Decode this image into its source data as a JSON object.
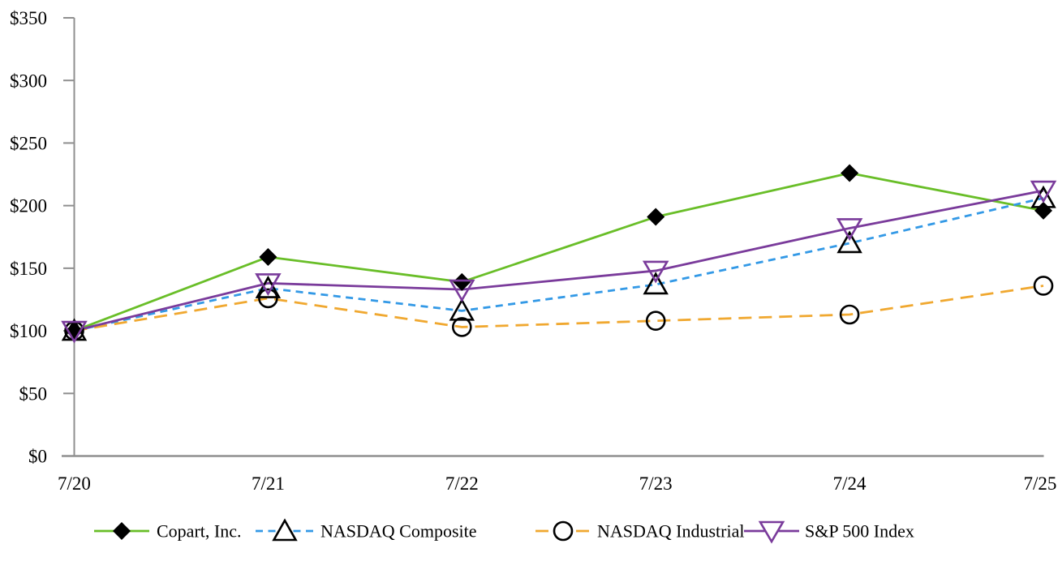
{
  "chart_data": {
    "type": "line",
    "title": "",
    "x_categories": [
      "7/20",
      "7/21",
      "7/22",
      "7/23",
      "7/24",
      "7/25"
    ],
    "y_ticks": [
      {
        "value": 0,
        "label": "$0"
      },
      {
        "value": 50,
        "label": "$50"
      },
      {
        "value": 100,
        "label": "$100"
      },
      {
        "value": 150,
        "label": "$150"
      },
      {
        "value": 200,
        "label": "$200"
      },
      {
        "value": 250,
        "label": "$250"
      },
      {
        "value": 300,
        "label": "$300"
      },
      {
        "value": 350,
        "label": "$350"
      }
    ],
    "ylim": [
      0,
      350
    ],
    "y_tick_step": 50,
    "grid": false,
    "legend_position": "bottom",
    "axis_color": "#8F8F8F",
    "series": [
      {
        "name": "Copart, Inc.",
        "color": "#69BE28",
        "line_style": "solid",
        "marker": "diamond",
        "marker_color": "#000000",
        "marker_fill": "#000000",
        "values": [
          100,
          159,
          139,
          191,
          226,
          196
        ]
      },
      {
        "name": "NASDAQ Composite",
        "color": "#3399E6",
        "line_style": "dashed",
        "marker": "triangle-up",
        "marker_color": "#000000",
        "marker_fill": "none",
        "values": [
          100,
          134,
          116,
          137,
          170,
          206
        ]
      },
      {
        "name": "NASDAQ Industrial",
        "color": "#F0A830",
        "line_style": "long-dash",
        "marker": "circle",
        "marker_color": "#000000",
        "marker_fill": "none",
        "values": [
          100,
          126,
          103,
          108,
          113,
          136
        ]
      },
      {
        "name": "S&P 500 Index",
        "color": "#7A3B9B",
        "line_style": "solid",
        "marker": "triangle-down",
        "marker_color": "#7A3B9B",
        "marker_fill": "none",
        "values": [
          100,
          138,
          133,
          148,
          182,
          212
        ]
      }
    ]
  }
}
